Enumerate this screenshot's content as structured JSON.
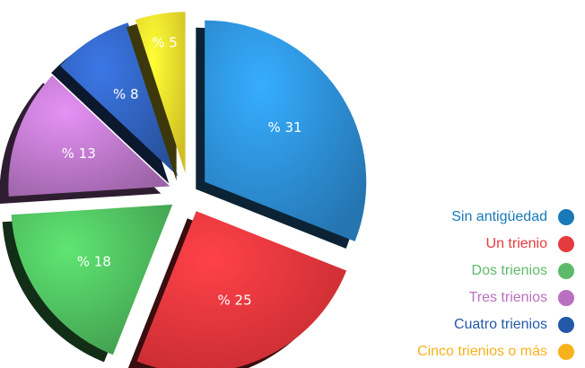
{
  "chart_data": {
    "type": "pie",
    "categories": [
      "Sin antigüedad",
      "Un trienio",
      "Dos trienios",
      "Tres trienios",
      "Cuatro trienios",
      "Cinco trienios o más"
    ],
    "values": [
      31,
      25,
      18,
      13,
      8,
      5
    ],
    "labels": [
      "% 31",
      "% 25",
      "% 18",
      "% 13",
      "% 8",
      "% 5"
    ],
    "colors": [
      "#2b8ad0",
      "#e8343a",
      "#4cb85c",
      "#b774c4",
      "#2f5fb8",
      "#f5e12a"
    ],
    "legend_colors": [
      "#1a79b7",
      "#e53b3f",
      "#5eba6b",
      "#ba6fc2",
      "#2358a8",
      "#f7b21c"
    ],
    "legend_position": "bottom-right",
    "exploded": true,
    "three_d": true
  }
}
